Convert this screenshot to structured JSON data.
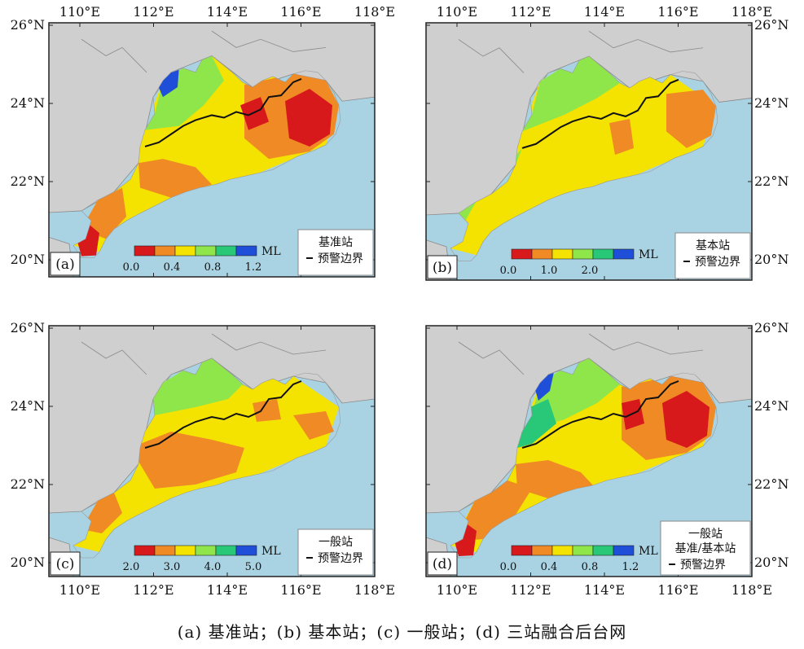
{
  "panels": [
    {
      "id": "a",
      "label": "(a)",
      "colorbar": {
        "unit": "ML",
        "colors": [
          "#d7191c",
          "#f08a24",
          "#f4e300",
          "#8ee64a",
          "#28c878",
          "#1f4fd8"
        ],
        "ticks": [
          "0.0",
          "0.4",
          "0.8",
          "1.2"
        ]
      },
      "legend": {
        "title": "基准站",
        "boundary": "预警边界"
      },
      "lat_labels": [
        "26°N",
        "24°N",
        "22°N",
        "20°N"
      ],
      "lon_labels": [
        "110°E",
        "112°E",
        "114°E",
        "116°E",
        "118°E"
      ],
      "lat_side": "left",
      "lon_side": "top"
    },
    {
      "id": "b",
      "label": "(b)",
      "colorbar": {
        "unit": "ML",
        "colors": [
          "#d7191c",
          "#f08a24",
          "#f4e300",
          "#8ee64a",
          "#28c878",
          "#1f4fd8"
        ],
        "ticks": [
          "0.0",
          "1.0",
          "2.0"
        ]
      },
      "legend": {
        "title": "基本站",
        "boundary": "预警边界"
      },
      "lat_labels": [
        "26°N",
        "24°N",
        "22°N",
        "20°N"
      ],
      "lon_labels": [
        "110°E",
        "112°E",
        "114°E",
        "116°E",
        "118°E"
      ],
      "lat_side": "right",
      "lon_side": "top"
    },
    {
      "id": "c",
      "label": "(c)",
      "colorbar": {
        "unit": "ML",
        "colors": [
          "#d7191c",
          "#f08a24",
          "#f4e300",
          "#8ee64a",
          "#28c878",
          "#1f4fd8"
        ],
        "ticks": [
          "2.0",
          "3.0",
          "4.0",
          "5.0"
        ]
      },
      "legend": {
        "title": "一般站",
        "boundary": "预警边界"
      },
      "lat_labels": [
        "26°N",
        "24°N",
        "22°N",
        "20°N"
      ],
      "lon_labels": [
        "110°E",
        "112°E",
        "114°E",
        "116°E",
        "118°E"
      ],
      "lat_side": "left",
      "lon_side": "bottom"
    },
    {
      "id": "d",
      "label": "(d)",
      "colorbar": {
        "unit": "ML",
        "colors": [
          "#d7191c",
          "#f08a24",
          "#f4e300",
          "#8ee64a",
          "#28c878",
          "#1f4fd8"
        ],
        "ticks": [
          "0.0",
          "0.4",
          "0.8",
          "1.2"
        ]
      },
      "legend": {
        "title": "一般站",
        "title2": "基准/基本站",
        "boundary": "预警边界"
      },
      "lat_labels": [
        "26°N",
        "24°N",
        "22°N",
        "20°N"
      ],
      "lon_labels": [
        "110°E",
        "112°E",
        "114°E",
        "116°E",
        "118°E"
      ],
      "lat_side": "right",
      "lon_side": "bottom"
    }
  ],
  "caption": "(a) 基准站；(b) 基本站；(c) 一般站；(d) 三站融合后台网",
  "colors": {
    "sea": "#a9d3e3",
    "land_outside": "#cfcfcf",
    "border": "#8a8a8a",
    "boundary_line": "#111111"
  }
}
